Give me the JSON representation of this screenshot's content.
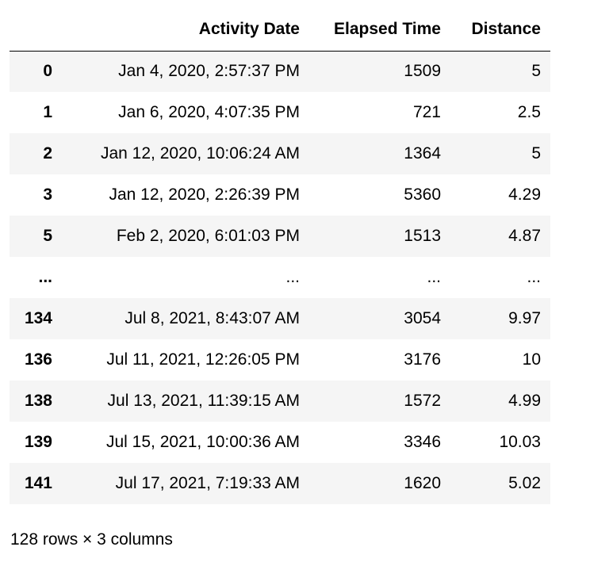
{
  "table": {
    "columns": [
      "",
      "Activity Date",
      "Elapsed Time",
      "Distance"
    ],
    "rows": [
      {
        "index": "0",
        "activity_date": "Jan 4, 2020, 2:57:37 PM",
        "elapsed_time": "1509",
        "distance": "5"
      },
      {
        "index": "1",
        "activity_date": "Jan 6, 2020, 4:07:35 PM",
        "elapsed_time": "721",
        "distance": "2.5"
      },
      {
        "index": "2",
        "activity_date": "Jan 12, 2020, 10:06:24 AM",
        "elapsed_time": "1364",
        "distance": "5"
      },
      {
        "index": "3",
        "activity_date": "Jan 12, 2020, 2:26:39 PM",
        "elapsed_time": "5360",
        "distance": "4.29"
      },
      {
        "index": "5",
        "activity_date": "Feb 2, 2020, 6:01:03 PM",
        "elapsed_time": "1513",
        "distance": "4.87"
      },
      {
        "index": "...",
        "activity_date": "...",
        "elapsed_time": "...",
        "distance": "..."
      },
      {
        "index": "134",
        "activity_date": "Jul 8, 2021, 8:43:07 AM",
        "elapsed_time": "3054",
        "distance": "9.97"
      },
      {
        "index": "136",
        "activity_date": "Jul 11, 2021, 12:26:05 PM",
        "elapsed_time": "3176",
        "distance": "10"
      },
      {
        "index": "138",
        "activity_date": "Jul 13, 2021, 11:39:15 AM",
        "elapsed_time": "1572",
        "distance": "4.99"
      },
      {
        "index": "139",
        "activity_date": "Jul 15, 2021, 10:00:36 AM",
        "elapsed_time": "3346",
        "distance": "10.03"
      },
      {
        "index": "141",
        "activity_date": "Jul 17, 2021, 7:19:33 AM",
        "elapsed_time": "1620",
        "distance": "5.02"
      }
    ]
  },
  "summary": "128 rows × 3 columns",
  "colors": {
    "stripe": "#f5f5f5",
    "text": "#000000",
    "header_rule": "#000000"
  }
}
